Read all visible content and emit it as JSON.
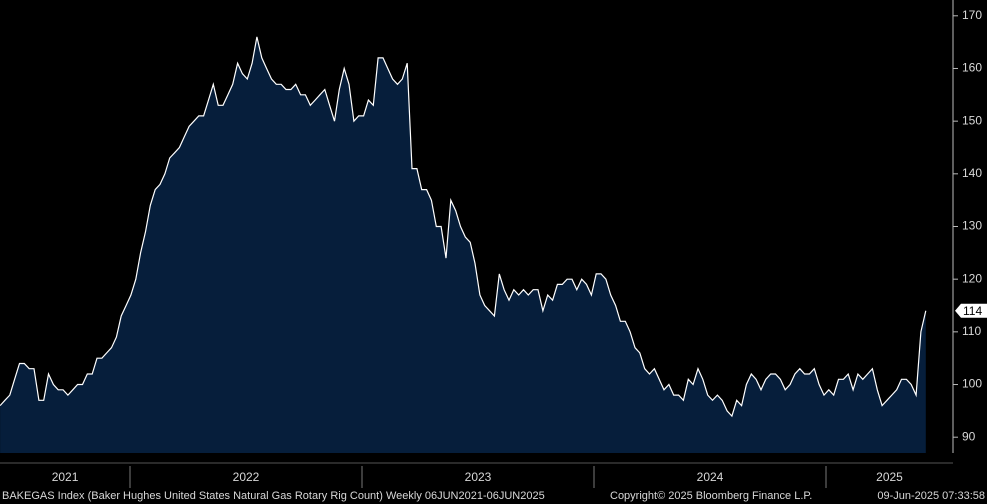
{
  "chart_data": {
    "type": "area",
    "series": [
      {
        "name": "BAKEGAS Index",
        "color": "#ffffff",
        "fill": "#061e3b",
        "values": [
          96,
          97,
          98,
          101,
          104,
          104,
          103,
          103,
          97,
          97,
          102,
          100,
          99,
          99,
          98,
          99,
          100,
          100,
          102,
          102,
          105,
          105,
          106,
          107,
          109,
          113,
          115,
          117,
          120,
          125,
          129,
          134,
          137,
          138,
          140,
          143,
          144,
          145,
          147,
          149,
          150,
          151,
          151,
          154,
          157,
          153,
          153,
          155,
          157,
          161,
          159,
          158,
          161,
          166,
          162,
          160,
          158,
          157,
          157,
          156,
          156,
          157,
          155,
          155,
          153,
          154,
          155,
          156,
          153,
          150,
          156,
          160,
          157,
          150,
          151,
          151,
          154,
          153,
          162,
          162,
          160,
          158,
          157,
          158,
          161,
          141,
          141,
          137,
          137,
          135,
          130,
          130,
          124,
          135,
          133,
          130,
          128,
          127,
          123,
          117,
          115,
          114,
          113,
          121,
          118,
          116,
          118,
          117,
          118,
          117,
          118,
          118,
          114,
          117,
          116,
          119,
          119,
          120,
          120,
          118,
          120,
          119,
          117,
          121,
          121,
          120,
          117,
          115,
          112,
          112,
          110,
          107,
          106,
          103,
          102,
          103,
          101,
          99,
          100,
          98,
          98,
          97,
          101,
          100,
          103,
          101,
          98,
          97,
          98,
          97,
          95,
          94,
          97,
          96,
          100,
          102,
          101,
          99,
          101,
          102,
          102,
          101,
          99,
          100,
          102,
          103,
          102,
          102,
          103,
          100,
          98,
          99,
          98,
          101,
          101,
          102,
          99,
          102,
          101,
          102,
          103,
          99,
          96,
          97,
          98,
          99,
          101,
          101,
          100,
          98,
          110,
          114
        ]
      }
    ],
    "last_value_label": "114",
    "xlim": [
      2021.44,
      2025.43
    ],
    "xticks": [
      2021,
      2022,
      2023,
      2024,
      2025
    ],
    "ylim": [
      87,
      173
    ],
    "yticks": [
      90,
      100,
      110,
      120,
      130,
      140,
      150,
      160,
      170
    ],
    "footer": {
      "description": "BAKEGAS Index (Baker Hughes United States Natural Gas Rotary Rig Count)  Weekly 06JUN2021-06JUN2025",
      "copyright": "Copyright© 2025 Bloomberg Finance L.P.",
      "timestamp": "09-Jun-2025 07:33:58"
    }
  }
}
